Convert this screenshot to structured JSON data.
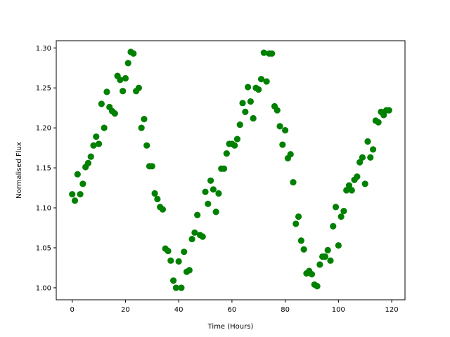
{
  "chart_data": {
    "type": "scatter",
    "title": "",
    "xlabel": "Time (Hours)",
    "ylabel": "Normalised Flux",
    "xlim": [
      -6,
      125
    ],
    "ylim": [
      0.985,
      1.309
    ],
    "xticks": [
      0,
      20,
      40,
      60,
      80,
      100,
      120
    ],
    "xtick_labels": [
      "0",
      "20",
      "40",
      "60",
      "80",
      "100",
      "120"
    ],
    "yticks": [
      1.0,
      1.05,
      1.1,
      1.15,
      1.2,
      1.25,
      1.3
    ],
    "ytick_labels": [
      "1.00",
      "1.05",
      "1.10",
      "1.15",
      "1.20",
      "1.25",
      "1.30"
    ],
    "grid": false,
    "legend": "none",
    "marker_color": "#008000",
    "series": [
      {
        "x": [
          0,
          1,
          2,
          3,
          4,
          5,
          6,
          7,
          8,
          9,
          10,
          11,
          12,
          13,
          14,
          15,
          16,
          17,
          18,
          19,
          20,
          21,
          22,
          23,
          24,
          25,
          26,
          27,
          28,
          29,
          30,
          31,
          32,
          33,
          34,
          35,
          36,
          37,
          38,
          39,
          40,
          41,
          42,
          43,
          44,
          45,
          46,
          47,
          48,
          49,
          50,
          51,
          52,
          53,
          54,
          55,
          56,
          57,
          58,
          59,
          60,
          61,
          62,
          63,
          64,
          65,
          66,
          67,
          68,
          69,
          70,
          71,
          72,
          73,
          74,
          75,
          76,
          77,
          78,
          79,
          80,
          81,
          82,
          83,
          84,
          85,
          86,
          87,
          88,
          89,
          90,
          91,
          92,
          93,
          94,
          95,
          96,
          97,
          98,
          99,
          100,
          101,
          102,
          103,
          104,
          105,
          106,
          107,
          108,
          109,
          110,
          111,
          112,
          113,
          114,
          115,
          116,
          117,
          118,
          119
        ],
        "y": [
          1.117,
          1.109,
          1.142,
          1.117,
          1.13,
          1.151,
          1.156,
          1.164,
          1.178,
          1.189,
          1.18,
          1.23,
          1.2,
          1.245,
          1.226,
          1.221,
          1.218,
          1.265,
          1.26,
          1.246,
          1.262,
          1.281,
          1.295,
          1.293,
          1.246,
          1.25,
          1.2,
          1.211,
          1.178,
          1.152,
          1.152,
          1.118,
          1.111,
          1.101,
          1.098,
          1.049,
          1.046,
          1.034,
          1.009,
          1.0,
          1.033,
          1.0,
          1.045,
          1.02,
          1.022,
          1.061,
          1.069,
          1.091,
          1.066,
          1.064,
          1.12,
          1.105,
          1.134,
          1.123,
          1.095,
          1.118,
          1.149,
          1.149,
          1.168,
          1.18,
          1.18,
          1.178,
          1.186,
          1.204,
          1.231,
          1.22,
          1.251,
          1.233,
          1.212,
          1.25,
          1.248,
          1.261,
          1.294,
          1.258,
          1.293,
          1.293,
          1.227,
          1.222,
          1.202,
          1.179,
          1.197,
          1.162,
          1.167,
          1.132,
          1.08,
          1.089,
          1.059,
          1.048,
          1.018,
          1.021,
          1.017,
          1.004,
          1.002,
          1.029,
          1.039,
          1.039,
          1.047,
          1.034,
          1.077,
          1.101,
          1.053,
          1.089,
          1.096,
          1.122,
          1.128,
          1.122,
          1.135,
          1.139,
          1.157,
          1.163,
          1.13,
          1.183,
          1.163,
          1.173,
          1.209,
          1.207,
          1.22,
          1.216,
          1.222,
          1.222
        ]
      }
    ]
  }
}
